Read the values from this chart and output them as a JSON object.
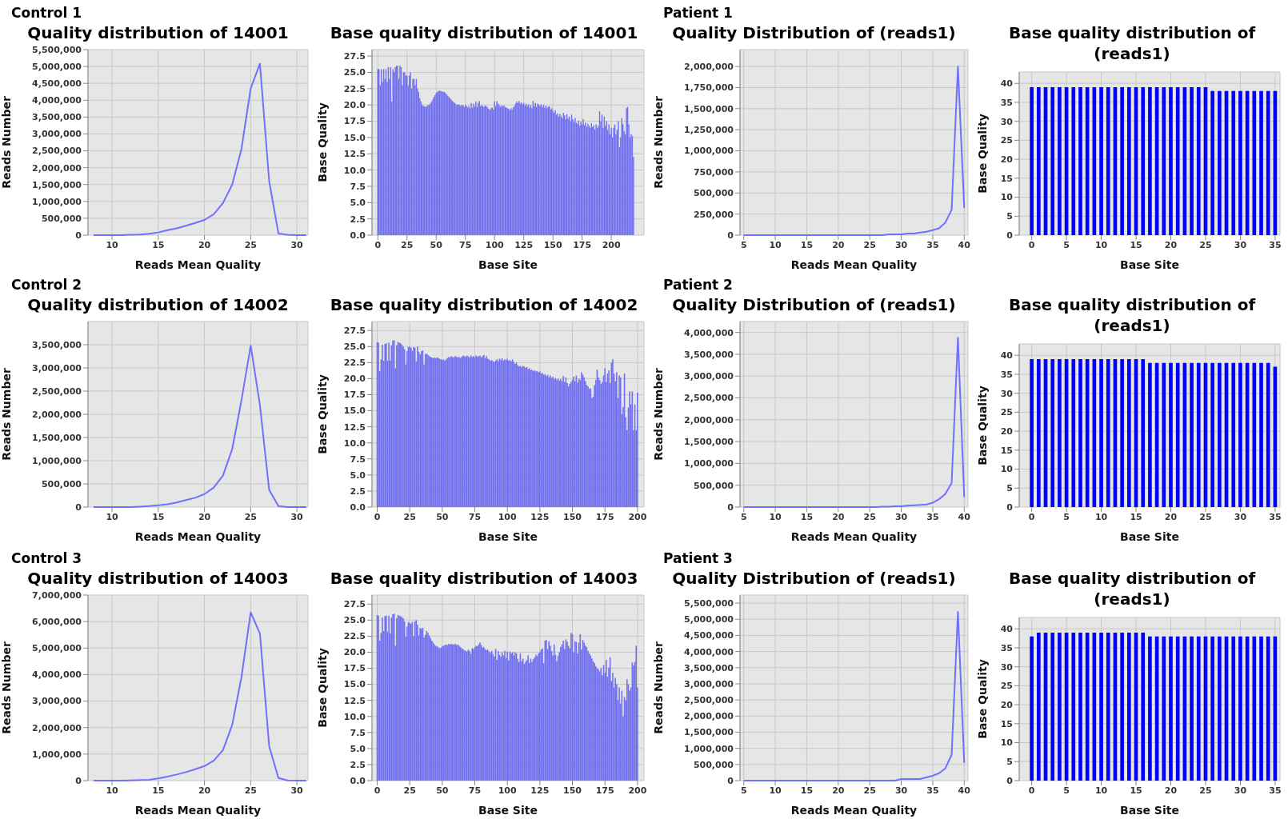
{
  "chart_data": [
    {
      "type": "line",
      "annotations": [
        "Control 1"
      ],
      "title": "Quality distribution of 14001",
      "xlabel": "Reads Mean Quality",
      "ylabel": "Reads Number",
      "grid": true,
      "x": [
        8,
        9,
        10,
        11,
        12,
        13,
        14,
        15,
        16,
        17,
        18,
        19,
        20,
        21,
        22,
        23,
        24,
        25,
        26,
        27,
        28,
        29,
        30,
        31
      ],
      "values": [
        0,
        0,
        0,
        0,
        10000,
        20000,
        40000,
        80000,
        150000,
        200000,
        280000,
        360000,
        450000,
        620000,
        950000,
        1500000,
        2550000,
        4350000,
        5080000,
        1600000,
        50000,
        10000,
        0,
        0
      ],
      "color": "#7070ff",
      "xlim": [
        7.4,
        31.2
      ],
      "xticks": [
        10,
        15,
        20,
        25,
        30
      ],
      "ylim": [
        0,
        5500000
      ],
      "yticks": [
        {
          "value": 0,
          "label": "0"
        },
        {
          "value": 500000,
          "label": "500,000"
        },
        {
          "value": 1000000,
          "label": "1,000,000"
        },
        {
          "value": 1500000,
          "label": "1,500,000"
        },
        {
          "value": 2000000,
          "label": "2,000,000"
        },
        {
          "value": 2500000,
          "label": "2,500,000"
        },
        {
          "value": 3000000,
          "label": "3,000,000"
        },
        {
          "value": 3500000,
          "label": "3,500,000"
        },
        {
          "value": 4000000,
          "label": "4,000,000"
        },
        {
          "value": 4500000,
          "label": "4,500,000"
        },
        {
          "value": 5000000,
          "label": "5,000,000"
        },
        {
          "value": 5500000,
          "label": "5,500,000"
        }
      ]
    },
    {
      "type": "bar",
      "title": "Base quality distribution of 14001",
      "xlabel": "Base Site",
      "ylabel": "Base Quality",
      "grid": true,
      "color": "#6f6ff0",
      "xlim": [
        -5,
        228
      ],
      "x": [
        0,
        1,
        2,
        3,
        4,
        5,
        6,
        7,
        8,
        9,
        10,
        11,
        12,
        13,
        14,
        15,
        16,
        17,
        18,
        19,
        20,
        21,
        22,
        23,
        24,
        25,
        26,
        27,
        28,
        29,
        30,
        31,
        32,
        33,
        34,
        35,
        36,
        37,
        38,
        39,
        40,
        41,
        42,
        43,
        44,
        45,
        46,
        47,
        48,
        49,
        50,
        51,
        52,
        53,
        54,
        55,
        56,
        57,
        58,
        59,
        60,
        61,
        62,
        63,
        64,
        65,
        66,
        67,
        68,
        69,
        70,
        71,
        72,
        73,
        74,
        75,
        76,
        77,
        78,
        79,
        80,
        81,
        82,
        83,
        84,
        85,
        86,
        87,
        88,
        89,
        90,
        91,
        92,
        93,
        94,
        95,
        96,
        97,
        98,
        99,
        100,
        101,
        102,
        103,
        104,
        105,
        106,
        107,
        108,
        109,
        110,
        111,
        112,
        113,
        114,
        115,
        116,
        117,
        118,
        119,
        120,
        121,
        122,
        123,
        124,
        125,
        126,
        127,
        128,
        129,
        130,
        131,
        132,
        133,
        134,
        135,
        136,
        137,
        138,
        139,
        140,
        141,
        142,
        143,
        144,
        145,
        146,
        147,
        148,
        149,
        150,
        151,
        152,
        153,
        154,
        155,
        156,
        157,
        158,
        159,
        160,
        161,
        162,
        163,
        164,
        165,
        166,
        167,
        168,
        169,
        170,
        171,
        172,
        173,
        174,
        175,
        176,
        177,
        178,
        179,
        180,
        181,
        182,
        183,
        184,
        185,
        186,
        187,
        188,
        189,
        190,
        191,
        192,
        193,
        194,
        195,
        196,
        197,
        198,
        199,
        200,
        201,
        202,
        203,
        204,
        205,
        206,
        207,
        208,
        209,
        210,
        211,
        212,
        213,
        214,
        215,
        216,
        217,
        218,
        219
      ],
      "xticks": [
        0,
        25,
        50,
        75,
        100,
        125,
        150,
        175,
        200
      ],
      "ylim": [
        0,
        28.5
      ],
      "yticks": [
        {
          "value": 0,
          "label": "0.0"
        },
        {
          "value": 2.5,
          "label": "2.5"
        },
        {
          "value": 5,
          "label": "5.0"
        },
        {
          "value": 7.5,
          "label": "7.5"
        },
        {
          "value": 10,
          "label": "10.0"
        },
        {
          "value": 12.5,
          "label": "12.5"
        },
        {
          "value": 15,
          "label": "15.0"
        },
        {
          "value": 17.5,
          "label": "17.5"
        },
        {
          "value": 20,
          "label": "20.0"
        },
        {
          "value": 22.5,
          "label": "22.5"
        },
        {
          "value": 25,
          "label": "25.0"
        },
        {
          "value": 27.5,
          "label": "27.5"
        }
      ],
      "values": [
        25.5,
        25.5,
        23,
        25.5,
        23.5,
        25.5,
        24,
        25.5,
        23.5,
        25.8,
        24,
        25.8,
        20.5,
        25.5,
        25,
        25.8,
        26,
        26,
        24,
        26,
        25.8,
        23,
        25,
        25,
        24.5,
        24.5,
        23,
        24.5,
        25,
        22.5,
        24,
        24,
        23,
        24,
        22.5,
        22,
        21,
        20.5,
        20,
        19.8,
        19.8,
        19.7,
        19.8,
        20,
        20,
        20.2,
        20.5,
        20.8,
        21.2,
        21.5,
        21.8,
        22,
        22.1,
        22.2,
        22.1,
        22.1,
        22,
        22,
        21.8,
        21.6,
        21.4,
        21.2,
        21,
        20.8,
        20.6,
        20.4,
        20.3,
        20.1,
        20,
        20.1,
        20,
        19.8,
        20,
        19.9,
        19.7,
        20,
        19.8,
        19.6,
        19.8,
        19.5,
        20.3,
        19.6,
        20.2,
        19.8,
        20.5,
        19.7,
        20.3,
        20.6,
        19.8,
        20,
        19.8,
        19.7,
        19.9,
        19.8,
        19.6,
        19.4,
        19.2,
        19.5,
        19.6,
        19.3,
        20.5,
        19.8,
        20.6,
        20.2,
        20,
        19.7,
        19.9,
        19.8,
        19.9,
        19.7,
        19.6,
        19.5,
        19.4,
        19.2,
        19.5,
        19.3,
        19.6,
        19.8,
        20.2,
        20.5,
        20.3,
        20.6,
        20.2,
        20.4,
        20.1,
        20.3,
        19.9,
        20.2,
        19.8,
        20.1,
        19.6,
        20,
        19.5,
        20.6,
        19.8,
        20.3,
        19.7,
        20.2,
        20,
        19.8,
        20.1,
        19.7,
        20,
        19.6,
        19.9,
        19.5,
        19.7,
        19.8,
        19.3,
        19.5,
        19.1,
        18.8,
        19.2,
        18.5,
        18.7,
        18.2,
        18.6,
        18.3,
        18,
        18.8,
        18.4,
        17.8,
        18.6,
        17.9,
        18.2,
        17.5,
        18.5,
        17.8,
        17.4,
        18,
        17.3,
        17.1,
        17.6,
        16.8,
        17.4,
        17,
        17.8,
        16.9,
        17.3,
        16.6,
        17.1,
        16.8,
        16.5,
        17.2,
        16.6,
        16.9,
        16.2,
        17,
        16.5,
        16.8,
        19,
        17.5,
        18.5,
        16.5,
        18.2,
        16.8,
        17.5,
        16.2,
        17,
        15.5,
        16.5,
        15,
        16.5,
        17,
        15.5,
        16.2,
        17.5,
        13.5,
        15,
        18,
        17,
        16,
        15.5,
        19.5,
        19.7,
        17,
        15,
        15.5,
        15.2,
        12
      ]
    },
    {
      "type": "line",
      "annotations": [
        "Patient 1"
      ],
      "title": "Quality Distribution of (reads1)",
      "xlabel": "Reads Mean Quality",
      "ylabel": "Reads Number",
      "grid": true,
      "x": [
        5,
        6,
        7,
        8,
        9,
        10,
        11,
        12,
        13,
        14,
        15,
        16,
        17,
        18,
        19,
        20,
        21,
        22,
        23,
        24,
        25,
        26,
        27,
        28,
        29,
        30,
        31,
        32,
        33,
        34,
        35,
        36,
        37,
        38,
        39,
        40
      ],
      "values": [
        0,
        0,
        0,
        0,
        0,
        0,
        0,
        0,
        0,
        0,
        0,
        0,
        0,
        0,
        0,
        0,
        0,
        0,
        0,
        0,
        0,
        0,
        0,
        10000,
        10000,
        10000,
        20000,
        20000,
        30000,
        40000,
        60000,
        80000,
        150000,
        300000,
        2000000,
        320000
      ],
      "color": "#7070ff",
      "xlim": [
        4.4,
        40.6
      ],
      "xticks": [
        5,
        10,
        15,
        20,
        25,
        30,
        35,
        40
      ],
      "ylim": [
        0,
        2200000
      ],
      "yticks": [
        {
          "value": 0,
          "label": "0"
        },
        {
          "value": 250000,
          "label": "250,000"
        },
        {
          "value": 500000,
          "label": "500,000"
        },
        {
          "value": 750000,
          "label": "750,000"
        },
        {
          "value": 1000000,
          "label": "1,000,000"
        },
        {
          "value": 1250000,
          "label": "1,250,000"
        },
        {
          "value": 1500000,
          "label": "1,500,000"
        },
        {
          "value": 1750000,
          "label": "1,750,000"
        },
        {
          "value": 2000000,
          "label": "2,000,000"
        }
      ]
    },
    {
      "type": "bar",
      "title": "Base quality distribution of (reads1)",
      "xlabel": "Base Site",
      "ylabel": "Base Quality",
      "grid": true,
      "color": "#0000ff",
      "x": [
        0,
        1,
        2,
        3,
        4,
        5,
        6,
        7,
        8,
        9,
        10,
        11,
        12,
        13,
        14,
        15,
        16,
        17,
        18,
        19,
        20,
        21,
        22,
        23,
        24,
        25,
        26,
        27,
        28,
        29,
        30,
        31,
        32,
        33,
        34,
        35
      ],
      "values": [
        39,
        39,
        39,
        39,
        39,
        39,
        39,
        39,
        39,
        39,
        39,
        39,
        39,
        39,
        39,
        39,
        39,
        39,
        39,
        39,
        39,
        39,
        39,
        39,
        39,
        39,
        38,
        38,
        38,
        38,
        38,
        38,
        38,
        38,
        38,
        38
      ],
      "xlim": [
        -1.8,
        35.7
      ],
      "xticks": [
        0,
        5,
        10,
        15,
        20,
        25,
        30,
        35
      ],
      "ylim": [
        0,
        43
      ],
      "yticks": [
        0,
        5,
        10,
        15,
        20,
        25,
        30,
        35,
        40
      ]
    },
    {
      "type": "line",
      "annotations": [
        "Control 2"
      ],
      "title": "Quality distribution of 14002",
      "xlabel": "Reads Mean Quality",
      "ylabel": "Reads Number",
      "grid": true,
      "x": [
        8,
        9,
        10,
        11,
        12,
        13,
        14,
        15,
        16,
        17,
        18,
        19,
        20,
        21,
        22,
        23,
        24,
        25,
        26,
        27,
        28,
        29,
        30,
        31
      ],
      "values": [
        0,
        0,
        0,
        0,
        0,
        10000,
        20000,
        40000,
        60000,
        100000,
        150000,
        200000,
        280000,
        420000,
        680000,
        1250000,
        2300000,
        3480000,
        2200000,
        370000,
        20000,
        0,
        0,
        0
      ],
      "color": "#7070ff",
      "xlim": [
        7.4,
        31.2
      ],
      "xticks": [
        10,
        15,
        20,
        25,
        30
      ],
      "ylim": [
        0,
        4000000
      ],
      "yticks": [
        {
          "value": 0,
          "label": "0"
        },
        {
          "value": 500000,
          "label": "500,000"
        },
        {
          "value": 1000000,
          "label": "1,000,000"
        },
        {
          "value": 1500000,
          "label": "1,500,000"
        },
        {
          "value": 2000000,
          "label": "2,000,000"
        },
        {
          "value": 2500000,
          "label": "2,500,000"
        },
        {
          "value": 3000000,
          "label": "3,000,000"
        },
        {
          "value": 3500000,
          "label": "3,500,000"
        }
      ]
    },
    {
      "type": "bar",
      "title": "Base quality distribution of 14002",
      "xlabel": "Base Site",
      "ylabel": "Base Quality",
      "grid": true,
      "color": "#6f6ff0",
      "xlim": [
        -4,
        205
      ],
      "x": [
        0,
        1,
        2,
        3,
        4,
        5,
        6,
        7,
        8,
        9,
        10,
        11,
        12,
        13,
        14,
        15,
        16,
        17,
        18,
        19,
        20,
        21,
        22,
        23,
        24,
        25,
        26,
        27,
        28,
        29,
        30,
        31,
        32,
        33,
        34,
        35,
        36,
        37,
        38,
        39,
        40,
        41,
        42,
        43,
        44,
        45,
        46,
        47,
        48,
        49,
        50,
        51,
        52,
        53,
        54,
        55,
        56,
        57,
        58,
        59,
        60,
        61,
        62,
        63,
        64,
        65,
        66,
        67,
        68,
        69,
        70,
        71,
        72,
        73,
        74,
        75,
        76,
        77,
        78,
        79,
        80,
        81,
        82,
        83,
        84,
        85,
        86,
        87,
        88,
        89,
        90,
        91,
        92,
        93,
        94,
        95,
        96,
        97,
        98,
        99,
        100,
        101,
        102,
        103,
        104,
        105,
        106,
        107,
        108,
        109,
        110,
        111,
        112,
        113,
        114,
        115,
        116,
        117,
        118,
        119,
        120,
        121,
        122,
        123,
        124,
        125,
        126,
        127,
        128,
        129,
        130,
        131,
        132,
        133,
        134,
        135,
        136,
        137,
        138,
        139,
        140,
        141,
        142,
        143,
        144,
        145,
        146,
        147,
        148,
        149,
        150,
        151,
        152,
        153,
        154,
        155,
        156,
        157,
        158,
        159,
        160,
        161,
        162,
        163,
        164,
        165,
        166,
        167,
        168,
        169,
        170,
        171,
        172,
        173,
        174,
        175,
        176,
        177,
        178,
        179,
        180,
        181,
        182,
        183,
        184,
        185,
        186,
        187,
        188,
        189,
        190,
        191,
        192,
        193,
        194,
        195,
        196,
        197,
        198,
        199,
        200
      ],
      "xticks": [
        0,
        25,
        50,
        75,
        100,
        125,
        150,
        175,
        200
      ],
      "ylim": [
        0,
        28.9
      ],
      "yticks": [
        {
          "value": 0,
          "label": "0.0"
        },
        {
          "value": 2.5,
          "label": "2.5"
        },
        {
          "value": 5,
          "label": "5.0"
        },
        {
          "value": 7.5,
          "label": "7.5"
        },
        {
          "value": 10,
          "label": "10.0"
        },
        {
          "value": 12.5,
          "label": "12.5"
        },
        {
          "value": 15,
          "label": "15.0"
        },
        {
          "value": 17.5,
          "label": "17.5"
        },
        {
          "value": 20,
          "label": "20.0"
        },
        {
          "value": 22.5,
          "label": "22.5"
        },
        {
          "value": 25,
          "label": "25.0"
        },
        {
          "value": 27.5,
          "label": "27.5"
        }
      ],
      "values": [
        25.7,
        25.6,
        21.2,
        23,
        25.3,
        22.8,
        25.4,
        25.5,
        22.8,
        25.6,
        22.8,
        25.2,
        25.9,
        26,
        21.6,
        25.2,
        25.7,
        25.6,
        25.5,
        25.3,
        25,
        24.6,
        22.2,
        24.3,
        24.9,
        25,
        24.8,
        24.3,
        24.9,
        24.8,
        22.7,
        25,
        24.2,
        23.8,
        24.3,
        24.4,
        22.2,
        23.8,
        23.9,
        23.7,
        23.5,
        23.4,
        23.3,
        23.2,
        23.3,
        23.2,
        23.3,
        23.2,
        23.1,
        23,
        22.9,
        23,
        22.8,
        23,
        23.2,
        23.4,
        23.3,
        23.5,
        23.4,
        23.3,
        23.5,
        23.4,
        23.3,
        23.4,
        23.2,
        23.4,
        23.6,
        23.5,
        23.4,
        23.6,
        23.5,
        23.3,
        23.6,
        23.4,
        23.5,
        23.3,
        23.6,
        23.4,
        23.5,
        23.6,
        23.3,
        23.5,
        23.7,
        23.2,
        23.5,
        23.1,
        23,
        22.8,
        22.9,
        22.7,
        22.6,
        22.8,
        23,
        22.7,
        23.1,
        22.9,
        23.2,
        22.8,
        23,
        22.9,
        23.1,
        22.8,
        22.9,
        22.7,
        23,
        22.6,
        22.3,
        22.5,
        22.1,
        21.9,
        22,
        21.8,
        22,
        21.9,
        21.7,
        21.8,
        21.5,
        21.6,
        21.3,
        21.4,
        21.2,
        21.3,
        21.1,
        21.2,
        21,
        21.1,
        20.8,
        20.9,
        20.6,
        20.7,
        20.4,
        20.6,
        20.2,
        20.5,
        20.1,
        20.3,
        19.9,
        20.1,
        19.8,
        20,
        19.7,
        19.9,
        19.6,
        20.4,
        19.5,
        20.2,
        19.3,
        18.8,
        19.2,
        19.5,
        19.8,
        20.3,
        19.6,
        20.5,
        19.4,
        20,
        19.8,
        21,
        20.6,
        20.2,
        19.6,
        19,
        18.8,
        18.4,
        18.5,
        17,
        17.2,
        19,
        19.8,
        21.4,
        20.2,
        19.8,
        19.2,
        19.5,
        20.5,
        21.6,
        19.5,
        20.8,
        21.3,
        19.3,
        22.5,
        23,
        20.8,
        19.6,
        21,
        17,
        20.5,
        20.2,
        14.5,
        15.6,
        20.8,
        14,
        12,
        15.5,
        18,
        16,
        18,
        12,
        16,
        12,
        17.8
      ]
    },
    {
      "type": "line",
      "annotations": [
        "Patient 2"
      ],
      "title": "Quality Distribution of (reads1)",
      "xlabel": "Reads Mean Quality",
      "ylabel": "Reads Number",
      "grid": true,
      "x": [
        5,
        6,
        7,
        8,
        9,
        10,
        11,
        12,
        13,
        14,
        15,
        16,
        17,
        18,
        19,
        20,
        21,
        22,
        23,
        24,
        25,
        26,
        27,
        28,
        29,
        30,
        31,
        32,
        33,
        34,
        35,
        36,
        37,
        38,
        39,
        40
      ],
      "values": [
        0,
        0,
        0,
        0,
        0,
        0,
        0,
        0,
        0,
        0,
        0,
        0,
        0,
        0,
        0,
        0,
        0,
        0,
        0,
        0,
        0,
        0,
        10000,
        10000,
        20000,
        20000,
        30000,
        40000,
        50000,
        60000,
        100000,
        180000,
        300000,
        550000,
        3880000,
        230000
      ],
      "color": "#7070ff",
      "xlim": [
        4.4,
        40.6
      ],
      "xticks": [
        5,
        10,
        15,
        20,
        25,
        30,
        35,
        40
      ],
      "ylim": [
        0,
        4250000
      ],
      "yticks": [
        {
          "value": 0,
          "label": "0"
        },
        {
          "value": 500000,
          "label": "500,000"
        },
        {
          "value": 1000000,
          "label": "1,000,000"
        },
        {
          "value": 1500000,
          "label": "1,500,000"
        },
        {
          "value": 2000000,
          "label": "2,000,000"
        },
        {
          "value": 2500000,
          "label": "2,500,000"
        },
        {
          "value": 3000000,
          "label": "3,000,000"
        },
        {
          "value": 3500000,
          "label": "3,500,000"
        },
        {
          "value": 4000000,
          "label": "4,000,000"
        }
      ]
    },
    {
      "type": "bar",
      "title": "Base quality distribution of (reads1)",
      "xlabel": "Base Site",
      "ylabel": "Base Quality",
      "grid": true,
      "color": "#0000ff",
      "x": [
        0,
        1,
        2,
        3,
        4,
        5,
        6,
        7,
        8,
        9,
        10,
        11,
        12,
        13,
        14,
        15,
        16,
        17,
        18,
        19,
        20,
        21,
        22,
        23,
        24,
        25,
        26,
        27,
        28,
        29,
        30,
        31,
        32,
        33,
        34,
        35
      ],
      "values": [
        39,
        39,
        39,
        39,
        39,
        39,
        39,
        39,
        39,
        39,
        39,
        39,
        39,
        39,
        39,
        39,
        39,
        38,
        38,
        38,
        38,
        38,
        38,
        38,
        38,
        38,
        38,
        38,
        38,
        38,
        38,
        38,
        38,
        38,
        38,
        37
      ],
      "xlim": [
        -1.8,
        35.7
      ],
      "xticks": [
        0,
        5,
        10,
        15,
        20,
        25,
        30,
        35
      ],
      "ylim": [
        0,
        43
      ],
      "yticks": [
        0,
        5,
        10,
        15,
        20,
        25,
        30,
        35,
        40
      ]
    },
    {
      "type": "line",
      "annotations": [
        "Control 3"
      ],
      "title": "Quality distribution of 14003",
      "xlabel": "Reads Mean Quality",
      "ylabel": "Reads Number",
      "grid": true,
      "x": [
        8,
        9,
        10,
        11,
        12,
        13,
        14,
        15,
        16,
        17,
        18,
        19,
        20,
        21,
        22,
        23,
        24,
        25,
        26,
        27,
        28,
        29,
        30,
        31
      ],
      "values": [
        0,
        0,
        0,
        0,
        10000,
        20000,
        30000,
        80000,
        150000,
        230000,
        320000,
        430000,
        550000,
        750000,
        1150000,
        2100000,
        3900000,
        6350000,
        5550000,
        1300000,
        100000,
        10000,
        0,
        0
      ],
      "color": "#7070ff",
      "xlim": [
        7.4,
        31.2
      ],
      "xticks": [
        10,
        15,
        20,
        25,
        30
      ],
      "ylim": [
        0,
        7000000
      ],
      "yticks": [
        {
          "value": 0,
          "label": "0"
        },
        {
          "value": 1000000,
          "label": "1,000,000"
        },
        {
          "value": 2000000,
          "label": "2,000,000"
        },
        {
          "value": 3000000,
          "label": "3,000,000"
        },
        {
          "value": 4000000,
          "label": "4,000,000"
        },
        {
          "value": 5000000,
          "label": "5,000,000"
        },
        {
          "value": 6000000,
          "label": "6,000,000"
        },
        {
          "value": 7000000,
          "label": "7,000,000"
        }
      ]
    },
    {
      "type": "bar",
      "title": "Base quality distribution of 14003",
      "xlabel": "Base Site",
      "ylabel": "Base Quality",
      "grid": true,
      "color": "#6f6ff0",
      "xlim": [
        -4,
        205
      ],
      "x": [
        0,
        1,
        2,
        3,
        4,
        5,
        6,
        7,
        8,
        9,
        10,
        11,
        12,
        13,
        14,
        15,
        16,
        17,
        18,
        19,
        20,
        21,
        22,
        23,
        24,
        25,
        26,
        27,
        28,
        29,
        30,
        31,
        32,
        33,
        34,
        35,
        36,
        37,
        38,
        39,
        40,
        41,
        42,
        43,
        44,
        45,
        46,
        47,
        48,
        49,
        50,
        51,
        52,
        53,
        54,
        55,
        56,
        57,
        58,
        59,
        60,
        61,
        62,
        63,
        64,
        65,
        66,
        67,
        68,
        69,
        70,
        71,
        72,
        73,
        74,
        75,
        76,
        77,
        78,
        79,
        80,
        81,
        82,
        83,
        84,
        85,
        86,
        87,
        88,
        89,
        90,
        91,
        92,
        93,
        94,
        95,
        96,
        97,
        98,
        99,
        100,
        101,
        102,
        103,
        104,
        105,
        106,
        107,
        108,
        109,
        110,
        111,
        112,
        113,
        114,
        115,
        116,
        117,
        118,
        119,
        120,
        121,
        122,
        123,
        124,
        125,
        126,
        127,
        128,
        129,
        130,
        131,
        132,
        133,
        134,
        135,
        136,
        137,
        138,
        139,
        140,
        141,
        142,
        143,
        144,
        145,
        146,
        147,
        148,
        149,
        150,
        151,
        152,
        153,
        154,
        155,
        156,
        157,
        158,
        159,
        160,
        161,
        162,
        163,
        164,
        165,
        166,
        167,
        168,
        169,
        170,
        171,
        172,
        173,
        174,
        175,
        176,
        177,
        178,
        179,
        180,
        181,
        182,
        183,
        184,
        185,
        186,
        187,
        188,
        189,
        190,
        191,
        192,
        193,
        194,
        195,
        196,
        197,
        198,
        199,
        200
      ],
      "xticks": [
        0,
        25,
        50,
        75,
        100,
        125,
        150,
        175,
        200
      ],
      "ylim": [
        0,
        28.9
      ],
      "yticks": [
        {
          "value": 0,
          "label": "0.0"
        },
        {
          "value": 2.5,
          "label": "2.5"
        },
        {
          "value": 5,
          "label": "5.0"
        },
        {
          "value": 7.5,
          "label": "7.5"
        },
        {
          "value": 10,
          "label": "10.0"
        },
        {
          "value": 12.5,
          "label": "12.5"
        },
        {
          "value": 15,
          "label": "15.0"
        },
        {
          "value": 17.5,
          "label": "17.5"
        },
        {
          "value": 20,
          "label": "20.0"
        },
        {
          "value": 22.5,
          "label": "22.5"
        },
        {
          "value": 25,
          "label": "25.0"
        },
        {
          "value": 27.5,
          "label": "27.5"
        }
      ],
      "values": [
        25.8,
        25.7,
        21.8,
        23,
        25.4,
        23.3,
        25.6,
        25.7,
        23.2,
        25.7,
        22.9,
        25.4,
        25.9,
        26,
        21,
        25.3,
        25.8,
        25.7,
        25.6,
        25.5,
        25.3,
        24.8,
        22.4,
        24,
        24.7,
        24.6,
        24.4,
        24.7,
        22.5,
        24.8,
        25,
        24.3,
        22.6,
        23.8,
        23.6,
        23.8,
        22.3,
        22.7,
        23.3,
        23,
        22.6,
        22.2,
        21.8,
        21.5,
        21.2,
        21,
        20.9,
        20.8,
        20.6,
        20.7,
        20.9,
        21,
        21.1,
        21.2,
        21.1,
        21.3,
        21.2,
        21.3,
        21.2,
        21.2,
        21.3,
        21.1,
        21.2,
        21,
        20.8,
        20.6,
        20.5,
        20.3,
        20.2,
        20.1,
        20.4,
        20.2,
        19.8,
        20.6,
        20.5,
        20.8,
        21,
        20.9,
        21.2,
        21.5,
        21.1,
        20.7,
        20.8,
        20.5,
        20.3,
        20.4,
        20.1,
        19.9,
        20.2,
        19.7,
        19.3,
        20.5,
        18.8,
        20.2,
        19.6,
        19.3,
        20,
        19.5,
        20.2,
        19.1,
        20.1,
        18.7,
        20.1,
        19.8,
        20,
        19.5,
        20,
        19.8,
        19,
        18.5,
        19.8,
        18.6,
        19,
        18.2,
        18.5,
        18.8,
        19.5,
        18.3,
        19,
        18.5,
        18.9,
        19.2,
        19.6,
        19.4,
        19.8,
        20,
        20.4,
        20.6,
        18.3,
        21.8,
        21.9,
        20.5,
        21.7,
        21,
        20.2,
        19.5,
        21.2,
        19.6,
        18.6,
        19.4,
        20,
        20.8,
        21.2,
        21.8,
        20.5,
        22,
        21.6,
        21,
        20.6,
        23,
        22.8,
        20,
        21.7,
        21.6,
        19.8,
        21.5,
        22.8,
        20.4,
        21.9,
        21.5,
        21,
        20.8,
        20.2,
        19.8,
        19.5,
        19,
        18.6,
        18.3,
        17.8,
        17.5,
        17.3,
        17,
        17.5,
        16.4,
        18,
        16.8,
        18.8,
        16.2,
        17.6,
        19.2,
        15.5,
        16.8,
        14.5,
        16,
        15,
        12.5,
        14.5,
        12,
        14,
        10,
        13,
        12.5,
        15.8,
        15,
        14,
        14.5,
        18.4,
        17.9,
        18.5,
        21,
        14.5
      ]
    },
    {
      "type": "line",
      "annotations": [
        "Patient 3"
      ],
      "title": "Quality Distribution of (reads1)",
      "xlabel": "Reads Mean Quality",
      "ylabel": "Reads Number",
      "grid": true,
      "x": [
        5,
        6,
        7,
        8,
        9,
        10,
        11,
        12,
        13,
        14,
        15,
        16,
        17,
        18,
        19,
        20,
        21,
        22,
        23,
        24,
        25,
        26,
        27,
        28,
        29,
        30,
        31,
        32,
        33,
        34,
        35,
        36,
        37,
        38,
        39,
        40
      ],
      "values": [
        0,
        0,
        0,
        0,
        0,
        0,
        0,
        0,
        0,
        0,
        0,
        0,
        0,
        0,
        0,
        0,
        0,
        0,
        0,
        0,
        0,
        0,
        0,
        0,
        0,
        50000,
        50000,
        50000,
        50000,
        100000,
        150000,
        230000,
        380000,
        800000,
        5230000,
        550000
      ],
      "color": "#7070ff",
      "xlim": [
        4.4,
        40.6
      ],
      "xticks": [
        5,
        10,
        15,
        20,
        25,
        30,
        35,
        40
      ],
      "ylim": [
        0,
        5750000
      ],
      "yticks": [
        {
          "value": 0,
          "label": "0"
        },
        {
          "value": 500000,
          "label": "500,000"
        },
        {
          "value": 1000000,
          "label": "1,000,000"
        },
        {
          "value": 1500000,
          "label": "1,500,000"
        },
        {
          "value": 2000000,
          "label": "2,000,000"
        },
        {
          "value": 2500000,
          "label": "2,500,000"
        },
        {
          "value": 3000000,
          "label": "3,000,000"
        },
        {
          "value": 3500000,
          "label": "3,500,000"
        },
        {
          "value": 4000000,
          "label": "4,000,000"
        },
        {
          "value": 4500000,
          "label": "4,500,000"
        },
        {
          "value": 5000000,
          "label": "5,000,000"
        },
        {
          "value": 5500000,
          "label": "5,500,000"
        }
      ]
    },
    {
      "type": "bar",
      "title": "Base quality distribution of (reads1)",
      "xlabel": "Base Site",
      "ylabel": "Base Quality",
      "grid": true,
      "color": "#0000ff",
      "x": [
        0,
        1,
        2,
        3,
        4,
        5,
        6,
        7,
        8,
        9,
        10,
        11,
        12,
        13,
        14,
        15,
        16,
        17,
        18,
        19,
        20,
        21,
        22,
        23,
        24,
        25,
        26,
        27,
        28,
        29,
        30,
        31,
        32,
        33,
        34,
        35
      ],
      "values": [
        38,
        39,
        39,
        39,
        39,
        39,
        39,
        39,
        39,
        39,
        39,
        39,
        39,
        39,
        39,
        39,
        39,
        38,
        38,
        38,
        38,
        38,
        38,
        38,
        38,
        38,
        38,
        38,
        38,
        38,
        38,
        38,
        38,
        38,
        38,
        38
      ],
      "xlim": [
        -1.8,
        35.7
      ],
      "xticks": [
        0,
        5,
        10,
        15,
        20,
        25,
        30,
        35
      ],
      "ylim": [
        0,
        43
      ],
      "yticks": [
        0,
        5,
        10,
        15,
        20,
        25,
        30,
        35,
        40
      ]
    }
  ]
}
